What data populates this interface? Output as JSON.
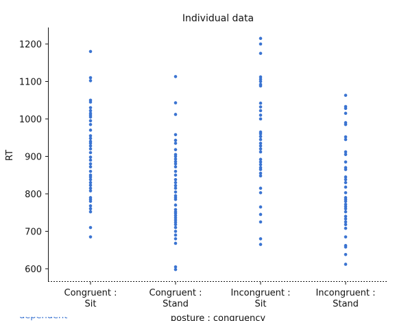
{
  "chart_data": {
    "type": "scatter",
    "title": "Individual data",
    "ylabel": "RT",
    "xlabel": "posture : congruency",
    "ylim": [
      565,
      1240
    ],
    "yticks": [
      600,
      700,
      800,
      900,
      1000,
      1100,
      1200
    ],
    "categories": [
      {
        "line1": "Congruent :",
        "line2": "Sit"
      },
      {
        "line1": "Congruent :",
        "line2": "Stand"
      },
      {
        "line1": "Incongruent :",
        "line2": "Sit"
      },
      {
        "line1": "Incongruent :",
        "line2": "Stand"
      }
    ],
    "point_color": "#3b74d1",
    "series": [
      {
        "name": "Congruent : Sit",
        "values": [
          1180,
          1110,
          1102,
          1050,
          1045,
          1030,
          1022,
          1015,
          1010,
          1005,
          995,
          985,
          970,
          955,
          948,
          940,
          935,
          928,
          920,
          910,
          898,
          890,
          880,
          872,
          860,
          850,
          845,
          838,
          830,
          823,
          815,
          808,
          790,
          785,
          780,
          768,
          760,
          752,
          710,
          685
        ]
      },
      {
        "name": "Congruent : Stand",
        "values": [
          1113,
          1043,
          1012,
          958,
          943,
          935,
          918,
          905,
          900,
          893,
          886,
          880,
          872,
          860,
          850,
          838,
          830,
          822,
          815,
          805,
          795,
          790,
          785,
          770,
          758,
          752,
          748,
          742,
          736,
          730,
          724,
          718,
          710,
          700,
          690,
          680,
          668,
          605,
          598
        ]
      },
      {
        "name": "Incongruent : Sit",
        "values": [
          1215,
          1200,
          1175,
          1112,
          1106,
          1100,
          1092,
          1088,
          1042,
          1032,
          1022,
          1010,
          1000,
          965,
          960,
          953,
          945,
          935,
          928,
          920,
          912,
          892,
          885,
          878,
          870,
          865,
          855,
          848,
          815,
          803,
          765,
          745,
          725,
          680,
          665
        ]
      },
      {
        "name": "Incongruent : Stand",
        "values": [
          1063,
          1033,
          1028,
          1015,
          990,
          985,
          952,
          945,
          912,
          905,
          885,
          870,
          865,
          845,
          838,
          830,
          818,
          803,
          790,
          785,
          780,
          772,
          766,
          760,
          752,
          740,
          733,
          725,
          718,
          708,
          685,
          662,
          658,
          638,
          612
        ]
      }
    ]
  },
  "footer": {
    "tab_text": "dependent"
  }
}
